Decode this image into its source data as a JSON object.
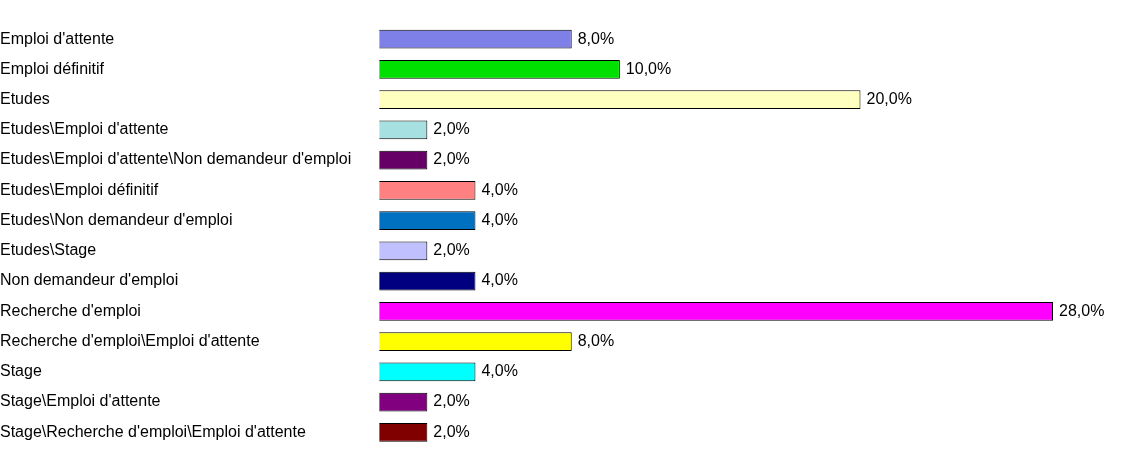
{
  "chart_data": {
    "type": "bar",
    "orientation": "horizontal",
    "categories": [
      "Emploi d'attente",
      "Emploi définitif",
      "Etudes",
      "Etudes\\Emploi d'attente",
      "Etudes\\Emploi d'attente\\Non demandeur d'emploi",
      "Etudes\\Emploi définitif",
      "Etudes\\Non demandeur d'emploi",
      "Etudes\\Stage",
      "Non demandeur d'emploi",
      "Recherche d'emploi",
      "Recherche d'emploi\\Emploi d'attente",
      "Stage",
      "Stage\\Emploi d'attente",
      "Stage\\Recherche d'emploi\\Emploi d'attente"
    ],
    "values": [
      8,
      10,
      20,
      2,
      2,
      4,
      4,
      2,
      4,
      28,
      8,
      4,
      2,
      2
    ],
    "value_labels": [
      "8,0%",
      "10,0%",
      "20,0%",
      "2,0%",
      "2,0%",
      "4,0%",
      "4,0%",
      "2,0%",
      "4,0%",
      "28,0%",
      "8,0%",
      "4,0%",
      "2,0%",
      "2,0%"
    ],
    "colors": [
      "#7f7fe8",
      "#00e000",
      "#ffffc0",
      "#a6e0e0",
      "#660066",
      "#ff8080",
      "#0070c0",
      "#c0c0ff",
      "#000080",
      "#ff00ff",
      "#ffff00",
      "#00ffff",
      "#800080",
      "#800000"
    ],
    "tick_labels": "y"
  }
}
